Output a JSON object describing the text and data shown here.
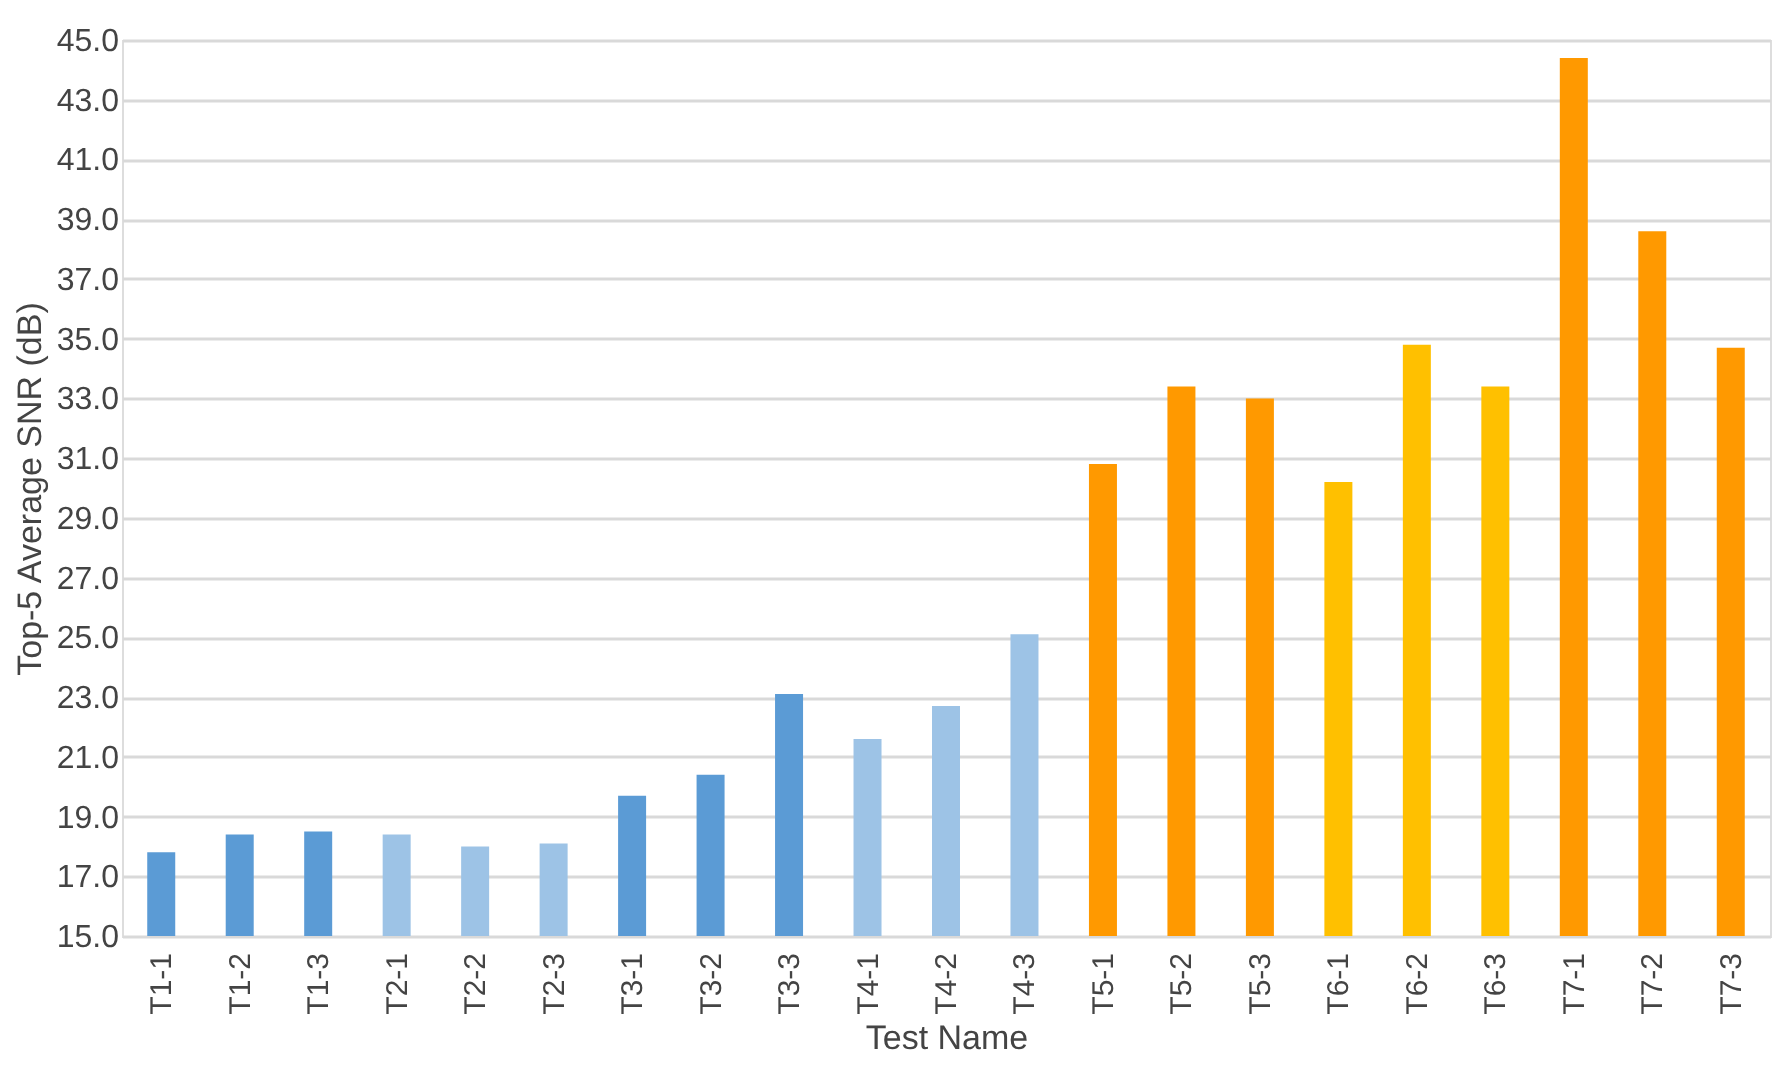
{
  "chart_data": {
    "type": "bar",
    "xlabel": "Test Name",
    "ylabel": "Top-5 Average SNR (dB)",
    "categories": [
      "T1-1",
      "T1-2",
      "T1-3",
      "T2-1",
      "T2-2",
      "T2-3",
      "T3-1",
      "T3-2",
      "T3-3",
      "T4-1",
      "T4-2",
      "T4-3",
      "T5-1",
      "T5-2",
      "T5-3",
      "T6-1",
      "T6-2",
      "T6-3",
      "T7-1",
      "T7-2",
      "T7-3"
    ],
    "values": [
      17.8,
      18.4,
      18.5,
      18.4,
      18.0,
      18.1,
      19.7,
      20.4,
      23.1,
      21.6,
      22.7,
      25.1,
      30.8,
      33.4,
      33.0,
      30.2,
      34.8,
      33.4,
      44.4,
      38.6,
      34.7
    ],
    "colors": [
      "#5b9bd5",
      "#5b9bd5",
      "#5b9bd5",
      "#9dc3e6",
      "#9dc3e6",
      "#9dc3e6",
      "#5b9bd5",
      "#5b9bd5",
      "#5b9bd5",
      "#9dc3e6",
      "#9dc3e6",
      "#9dc3e6",
      "#ff9900",
      "#ff9900",
      "#ff9900",
      "#ffc000",
      "#ffc000",
      "#ffc000",
      "#ff9900",
      "#ff9900",
      "#ff9900"
    ],
    "ylim": [
      15,
      45
    ],
    "yticks": [
      {
        "value": 15,
        "label": "15.0"
      },
      {
        "value": 17,
        "label": "17.0"
      },
      {
        "value": 19,
        "label": "19.0"
      },
      {
        "value": 21,
        "label": "21.0"
      },
      {
        "value": 23,
        "label": "23.0"
      },
      {
        "value": 25,
        "label": "25.0"
      },
      {
        "value": 27,
        "label": "27.0"
      },
      {
        "value": 29,
        "label": "29.0"
      },
      {
        "value": 31,
        "label": "31.0"
      },
      {
        "value": 33,
        "label": "33.0"
      },
      {
        "value": 35,
        "label": "35.0"
      },
      {
        "value": 37,
        "label": "37.0"
      },
      {
        "value": 39,
        "label": "39.0"
      },
      {
        "value": 41,
        "label": "41.0"
      },
      {
        "value": 43,
        "label": "43.0"
      },
      {
        "value": 45,
        "label": "45.0"
      }
    ],
    "grid": "y"
  }
}
